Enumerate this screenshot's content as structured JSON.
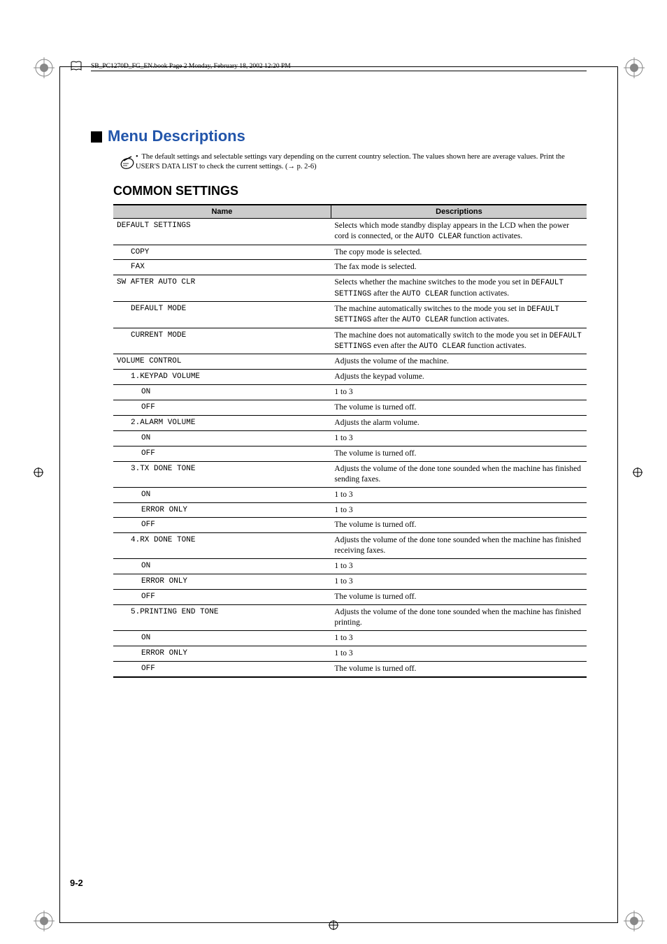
{
  "bookline": "SB_PC1270D_FG_EN.book  Page 2  Monday, February 18, 2002  12:20 PM",
  "h1": "Menu Descriptions",
  "note": "The default settings and selectable settings vary depending on the current country selection. The values shown here are average values. Print the USER'S DATA LIST to check the current settings. (→ p. 2-6)",
  "h2": "COMMON SETTINGS",
  "thName": "Name",
  "thDesc": "Descriptions",
  "rows": [
    {
      "n": "DEFAULT SETTINGS",
      "d": "Selects which mode standby display appears in the LCD when the power cord is connected, or the <span class='mono'>AUTO CLEAR</span> function activates.",
      "i": 0
    },
    {
      "n": "COPY",
      "d": "The copy mode is selected.",
      "i": 1
    },
    {
      "n": "FAX",
      "d": "The fax mode is selected.",
      "i": 1
    },
    {
      "n": "SW AFTER AUTO CLR",
      "d": "Selects whether the machine switches to the mode you set in <span class='mono'>DEFAULT SETTINGS</span> after the <span class='mono'>AUTO CLEAR</span> function activates.",
      "i": 0
    },
    {
      "n": "DEFAULT MODE",
      "d": "The machine automatically switches to the mode you set in <span class='mono'>DEFAULT SETTINGS</span> after the <span class='mono'>AUTO CLEAR</span> function activates.",
      "i": 1
    },
    {
      "n": "CURRENT MODE",
      "d": "The machine does not automatically switch to the mode you set in <span class='mono'>DEFAULT SETTINGS</span> even after the <span class='mono'>AUTO CLEAR</span> function activates.",
      "i": 1
    },
    {
      "n": "VOLUME CONTROL",
      "d": "Adjusts the volume of the machine.",
      "i": 0
    },
    {
      "n": "1.KEYPAD VOLUME",
      "d": "Adjusts the keypad volume.",
      "i": 1
    },
    {
      "n": "ON",
      "d": "1 to 3",
      "i": 2
    },
    {
      "n": "OFF",
      "d": "The volume is turned off.",
      "i": 2
    },
    {
      "n": "2.ALARM VOLUME",
      "d": "Adjusts the alarm volume.",
      "i": 1
    },
    {
      "n": "ON",
      "d": "1 to 3",
      "i": 2
    },
    {
      "n": "OFF",
      "d": "The volume is turned off.",
      "i": 2
    },
    {
      "n": "3.TX DONE TONE",
      "d": "Adjusts the volume of the done tone sounded when the machine has finished sending faxes.",
      "i": 1
    },
    {
      "n": "ON",
      "d": "1 to 3",
      "i": 2
    },
    {
      "n": "ERROR ONLY",
      "d": "1 to 3",
      "i": 2
    },
    {
      "n": "OFF",
      "d": "The volume is turned off.",
      "i": 2
    },
    {
      "n": "4.RX DONE TONE",
      "d": "Adjusts the volume of the done tone sounded when the machine has finished receiving faxes.",
      "i": 1
    },
    {
      "n": "ON",
      "d": "1 to 3",
      "i": 2
    },
    {
      "n": "ERROR ONLY",
      "d": "1 to 3",
      "i": 2
    },
    {
      "n": "OFF",
      "d": "The volume is turned off.",
      "i": 2
    },
    {
      "n": "5.PRINTING END TONE",
      "d": "Adjusts the volume of the done tone sounded when the machine has finished printing.",
      "i": 1
    },
    {
      "n": "ON",
      "d": "1 to 3",
      "i": 2
    },
    {
      "n": "ERROR ONLY",
      "d": "1 to 3",
      "i": 2
    },
    {
      "n": "OFF",
      "d": "The volume is turned off.",
      "i": 2,
      "last": true
    }
  ],
  "pgnum": "9-2"
}
